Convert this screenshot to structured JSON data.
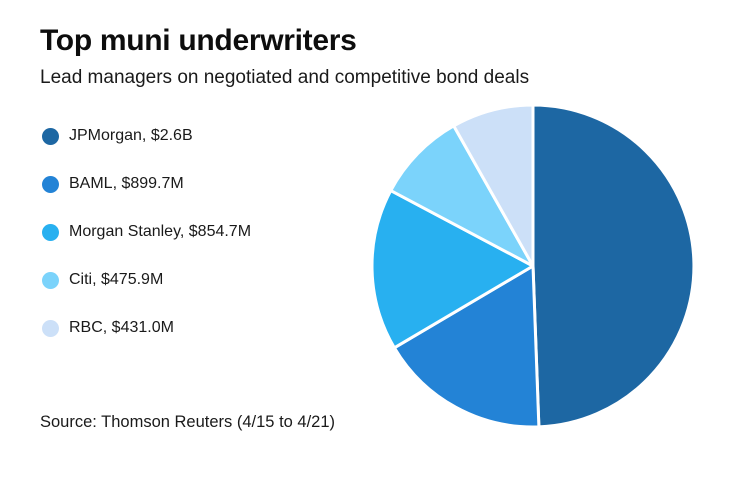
{
  "header": {
    "title": "Top muni underwriters",
    "subtitle": "Lead managers on negotiated and competitive bond deals"
  },
  "footer": {
    "source": "Source: Thomson Reuters (4/15 to 4/21)"
  },
  "chart_data": {
    "type": "pie",
    "title": "Top muni underwriters",
    "subtitle": "Lead managers on negotiated and competitive bond deals",
    "source": "Source: Thomson Reuters (4/15 to 4/21)",
    "legend_position": "left",
    "start_angle_deg": -90,
    "direction": "clockwise",
    "separator_color": "#ffffff",
    "slices": [
      {
        "label": "JPMorgan",
        "value_label": "$2.6B",
        "legend_label": "JPMorgan, $2.6B",
        "value_musd": 2600.0,
        "percent": 49.4,
        "color": "#1d67a3"
      },
      {
        "label": "BAML",
        "value_label": "$899.7M",
        "legend_label": "BAML, $899.7M",
        "value_musd": 899.7,
        "percent": 17.1,
        "color": "#2383d6"
      },
      {
        "label": "Morgan Stanley",
        "value_label": "$854.7M",
        "legend_label": "Morgan Stanley, $854.7M",
        "value_musd": 854.7,
        "percent": 16.2,
        "color": "#28b0f0"
      },
      {
        "label": "Citi",
        "value_label": "$475.9M",
        "legend_label": "Citi, $475.9M",
        "value_musd": 475.9,
        "percent": 9.0,
        "color": "#7bd3fb"
      },
      {
        "label": "RBC",
        "value_label": "$431.0M",
        "legend_label": "RBC, $431.0M",
        "value_musd": 431.0,
        "percent": 8.2,
        "color": "#cce0f8"
      }
    ]
  }
}
